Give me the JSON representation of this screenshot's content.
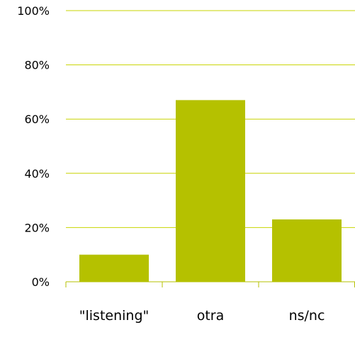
{
  "chart_data": {
    "type": "bar",
    "categories": [
      "\"listening\"",
      "otra",
      "ns/nc"
    ],
    "values": [
      10,
      67,
      23
    ],
    "y_unit": "%",
    "ylim": [
      0,
      100
    ],
    "yticks": [
      0,
      20,
      40,
      60,
      80,
      100
    ],
    "ytick_labels": [
      "0%",
      "20%",
      "40%",
      "60%",
      "80%",
      "100%"
    ],
    "grid": true,
    "legend": "none",
    "title": "",
    "xlabel": "",
    "ylabel": "",
    "colors": {
      "bar": "#b5c100",
      "grid": "#c8d400",
      "axis": "#b5c100"
    }
  }
}
